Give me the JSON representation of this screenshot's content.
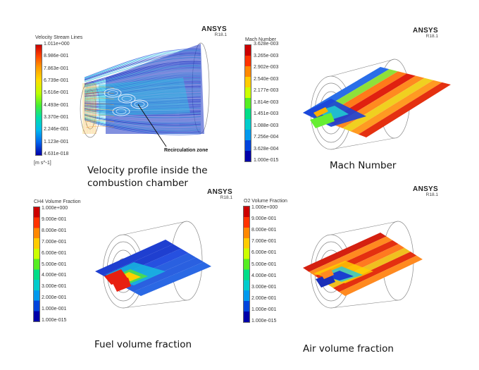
{
  "panels": {
    "velocity": {
      "legend_title": "Velocity Stream Lines",
      "values": [
        "1.011e+000",
        "8.986e-001",
        "7.863e-001",
        "6.739e-001",
        "5.616e-001",
        "4.493e-001",
        "3.370e-001",
        "2.246e-001",
        "1.123e-001",
        "4.631e-018"
      ],
      "unit": "[m s^-1]",
      "brand": "ANSYS",
      "version": "R18.1",
      "annotation": "Recirculation zone",
      "caption_line1": "Velocity profile inside the",
      "caption_line2": "combustion chamber"
    },
    "mach": {
      "legend_title": "Mach Number",
      "values": [
        "3.628e-003",
        "3.265e-003",
        "2.902e-003",
        "2.540e-003",
        "2.177e-003",
        "1.814e-003",
        "1.451e-003",
        "1.088e-003",
        "7.256e-004",
        "3.628e-004",
        "1.000e-015"
      ],
      "brand": "ANSYS",
      "version": "R18.1",
      "caption": "Mach Number"
    },
    "ch4": {
      "legend_title": "CH4 Volume Fraction",
      "values": [
        "1.000e+000",
        "9.000e-001",
        "8.000e-001",
        "7.000e-001",
        "6.000e-001",
        "5.000e-001",
        "4.000e-001",
        "3.000e-001",
        "2.000e-001",
        "1.000e-001",
        "1.000e-015"
      ],
      "brand": "ANSYS",
      "version": "R18.1",
      "caption": "Fuel volume fraction"
    },
    "o2": {
      "legend_title": "O2 Volume Fraction",
      "values": [
        "1.000e+000",
        "9.000e-001",
        "8.000e-001",
        "7.000e-001",
        "6.000e-001",
        "5.000e-001",
        "4.000e-001",
        "3.000e-001",
        "2.000e-001",
        "1.000e-001",
        "1.000e-015"
      ],
      "brand": "ANSYS",
      "version": "R18.1",
      "caption": "Air volume fraction"
    }
  },
  "colormap": [
    "#cc0000",
    "#ff3300",
    "#ff8800",
    "#ffcc00",
    "#ccff00",
    "#55ee22",
    "#00dd88",
    "#00cccc",
    "#0099ee",
    "#0044dd",
    "#0000aa"
  ]
}
